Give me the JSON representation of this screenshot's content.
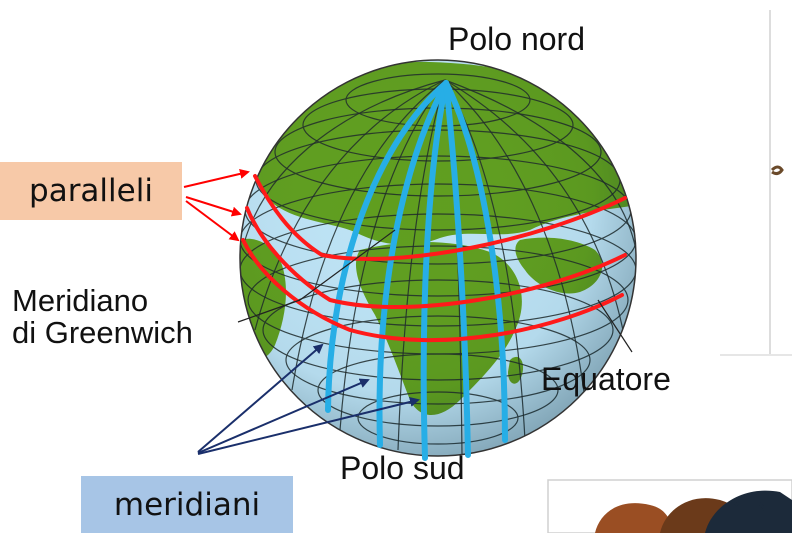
{
  "labels": {
    "polo_nord": "Polo nord",
    "polo_sud": "Polo sud",
    "meridiano_line1": "Meridiano",
    "meridiano_line2": "di Greenwich",
    "equatore": "Equatore",
    "paralleli": "paralleli",
    "meridiani": "meridiani"
  },
  "colors": {
    "ocean": "#bde3f5",
    "land": "#5f9e1e",
    "grid": "#1f2a2a",
    "parallel_highlight": "#ff1a1a",
    "meridian_highlight": "#27aee6",
    "paralleli_box": "#f7c9a8",
    "meridiani_box": "#a7c5e6",
    "red_arrow": "#ff0000",
    "blue_arrow": "#1a2f6b"
  },
  "icons": [
    "globe-illustration",
    "cartoon-people-fragment"
  ]
}
